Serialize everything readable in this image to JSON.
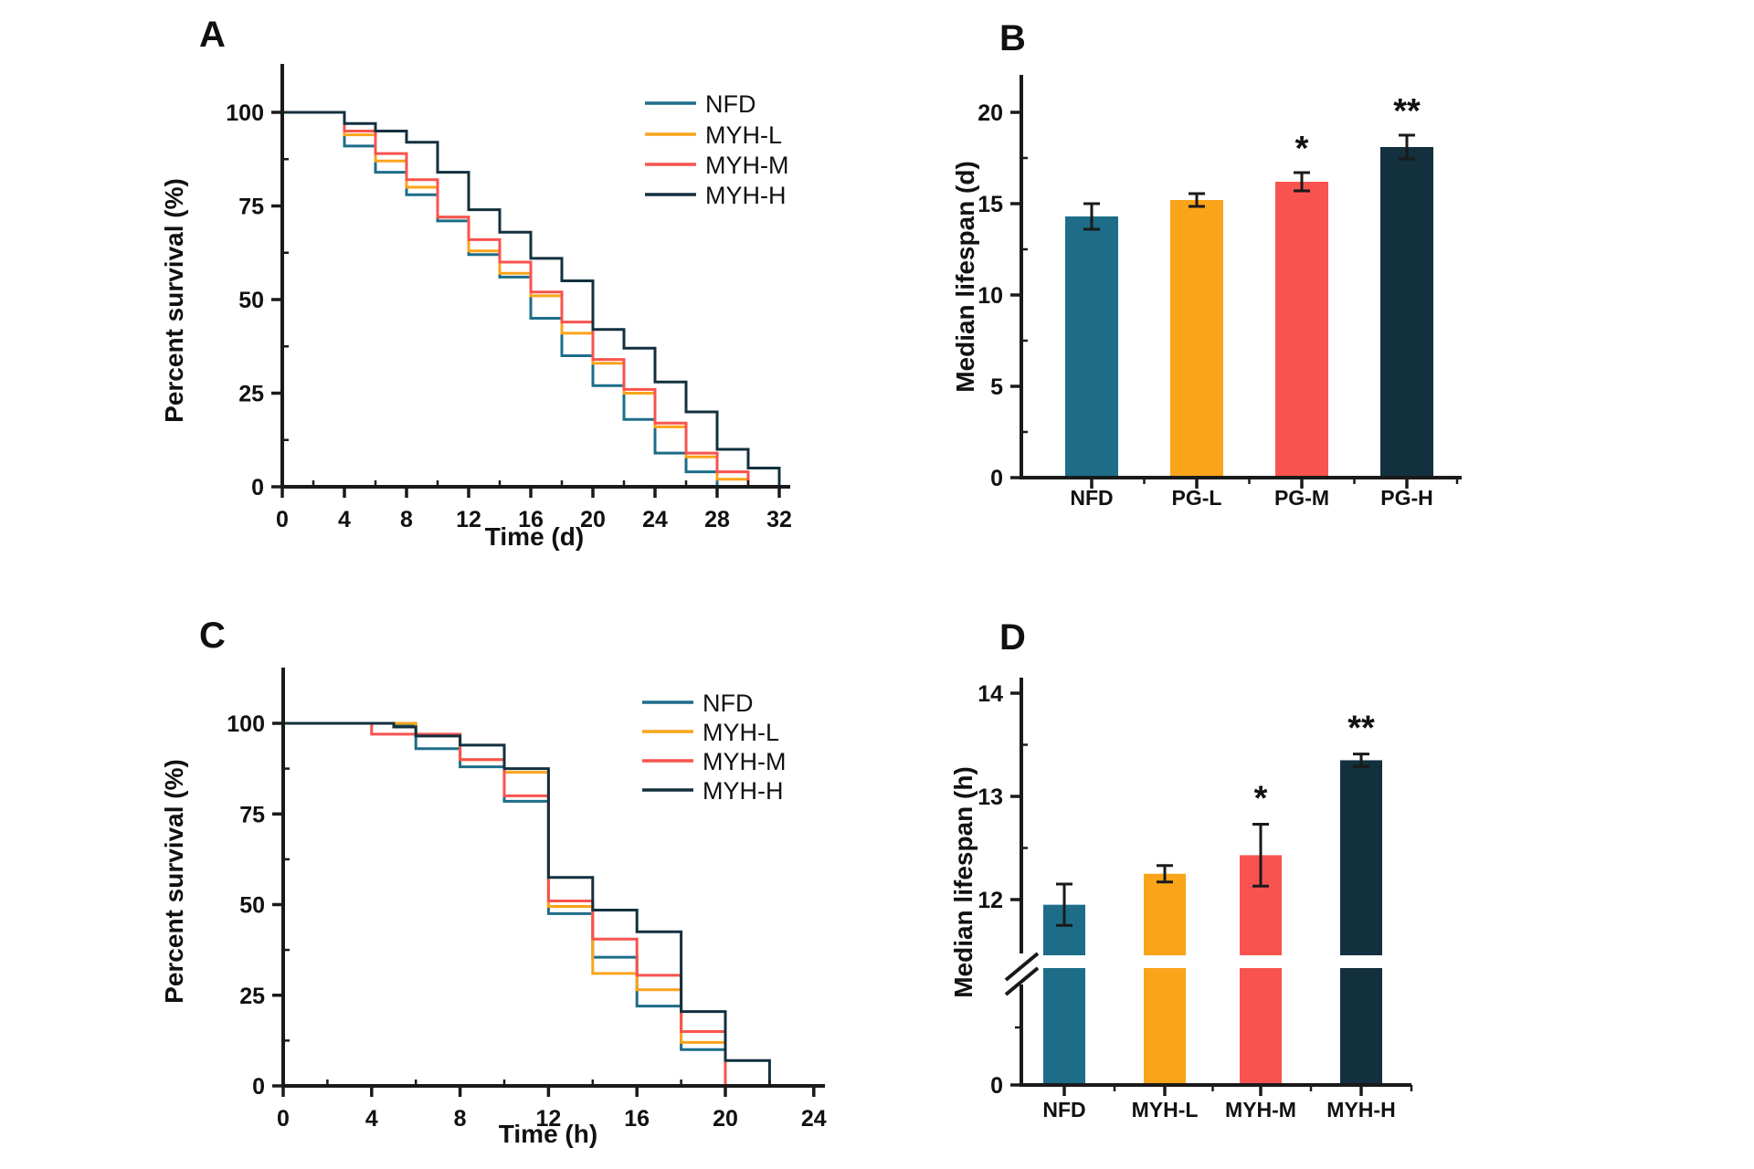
{
  "colors": {
    "teal": "#1D6D89",
    "orange": "#FAA41A",
    "red": "#F8534E",
    "navy": "#13303F",
    "axis": "#1A1A1A",
    "background": "#FFFFFF"
  },
  "chart_data": [
    {
      "id": "A",
      "panel_label": "A",
      "type": "line",
      "subtype": "step-survival",
      "xlabel": "Time (d)",
      "ylabel": "Percent survival (%)",
      "xlim": [
        0,
        32
      ],
      "ylim": [
        0,
        100
      ],
      "x_major_tick": 4,
      "x_minor_tick": 2,
      "x_tick_labels": [
        0,
        4,
        8,
        12,
        16,
        20,
        24,
        28,
        32
      ],
      "y_ticks": [
        0,
        25,
        50,
        75,
        100
      ],
      "y_minor_step": 12.5,
      "grid": false,
      "legend_position": "upper-right",
      "legend": [
        "NFD",
        "MYH-L",
        "MYH-M",
        "MYH-H"
      ],
      "series": [
        {
          "name": "NFD",
          "color": "#1D6D89",
          "points": [
            [
              0,
              100
            ],
            [
              4,
              91
            ],
            [
              6,
              84
            ],
            [
              8,
              78
            ],
            [
              10,
              71
            ],
            [
              12,
              62
            ],
            [
              14,
              56
            ],
            [
              16,
              45
            ],
            [
              18,
              35
            ],
            [
              20,
              27
            ],
            [
              22,
              18
            ],
            [
              24,
              9
            ],
            [
              26,
              4
            ],
            [
              28,
              0
            ]
          ]
        },
        {
          "name": "MYH-L",
          "color": "#FAA41A",
          "points": [
            [
              0,
              100
            ],
            [
              4,
              94
            ],
            [
              6,
              87
            ],
            [
              8,
              80
            ],
            [
              10,
              72
            ],
            [
              12,
              63
            ],
            [
              14,
              57
            ],
            [
              16,
              51
            ],
            [
              18,
              41
            ],
            [
              20,
              33
            ],
            [
              22,
              25
            ],
            [
              24,
              16
            ],
            [
              26,
              8
            ],
            [
              28,
              2
            ],
            [
              30,
              0
            ]
          ]
        },
        {
          "name": "MYH-M",
          "color": "#F8534E",
          "points": [
            [
              0,
              100
            ],
            [
              4,
              95
            ],
            [
              6,
              89
            ],
            [
              8,
              82
            ],
            [
              10,
              72
            ],
            [
              12,
              66
            ],
            [
              14,
              60
            ],
            [
              16,
              52
            ],
            [
              18,
              44
            ],
            [
              20,
              34
            ],
            [
              22,
              26
            ],
            [
              24,
              17
            ],
            [
              26,
              9
            ],
            [
              28,
              4
            ],
            [
              30,
              0
            ]
          ]
        },
        {
          "name": "MYH-H",
          "color": "#13303F",
          "points": [
            [
              0,
              100
            ],
            [
              4,
              97
            ],
            [
              6,
              95
            ],
            [
              8,
              92
            ],
            [
              10,
              84
            ],
            [
              12,
              74
            ],
            [
              14,
              68
            ],
            [
              16,
              61
            ],
            [
              18,
              55
            ],
            [
              20,
              42
            ],
            [
              22,
              37
            ],
            [
              24,
              28
            ],
            [
              26,
              20
            ],
            [
              28,
              10
            ],
            [
              30,
              5
            ],
            [
              32,
              0
            ]
          ]
        }
      ]
    },
    {
      "id": "B",
      "panel_label": "B",
      "type": "bar",
      "ylabel": "Median lifespan (d)",
      "ylim": [
        0,
        22
      ],
      "y_ticks": [
        0,
        5,
        10,
        15,
        20
      ],
      "y_minor_ticks": [
        2.5,
        7.5,
        12.5,
        17.5
      ],
      "grid": false,
      "categories": [
        "NFD",
        "PG-L",
        "PG-M",
        "PG-H"
      ],
      "values": [
        14.3,
        15.2,
        16.2,
        18.1
      ],
      "errors": [
        0.7,
        0.35,
        0.5,
        0.65
      ],
      "significance": [
        "",
        "",
        "*",
        "**"
      ],
      "bar_colors": [
        "#1D6D89",
        "#FAA41A",
        "#F8534E",
        "#13303F"
      ]
    },
    {
      "id": "C",
      "panel_label": "C",
      "type": "line",
      "subtype": "step-survival",
      "xlabel": "Time (h)",
      "ylabel": "Percent survival (%)",
      "xlim": [
        0,
        24
      ],
      "ylim": [
        0,
        100
      ],
      "x_major_tick": 4,
      "x_minor_tick": 2,
      "x_tick_labels": [
        0,
        4,
        8,
        12,
        16,
        20,
        24
      ],
      "y_ticks": [
        0,
        25,
        50,
        75,
        100
      ],
      "y_minor_step": 12.5,
      "grid": false,
      "legend_position": "upper-right",
      "legend": [
        "NFD",
        "MYH-L",
        "MYH-M",
        "MYH-H"
      ],
      "series": [
        {
          "name": "NFD",
          "color": "#1D6D89",
          "points": [
            [
              0,
              100
            ],
            [
              5,
              99.5
            ],
            [
              6,
              93
            ],
            [
              8,
              88
            ],
            [
              10,
              78.5
            ],
            [
              12,
              47.5
            ],
            [
              14,
              35.5
            ],
            [
              16,
              22
            ],
            [
              18,
              10
            ],
            [
              20,
              0
            ]
          ]
        },
        {
          "name": "MYH-L",
          "color": "#FAA41A",
          "points": [
            [
              0,
              100
            ],
            [
              6,
              96.5
            ],
            [
              8,
              90
            ],
            [
              10,
              86.5
            ],
            [
              12,
              49.5
            ],
            [
              14,
              31
            ],
            [
              16,
              26.5
            ],
            [
              18,
              12
            ],
            [
              20,
              0
            ]
          ]
        },
        {
          "name": "MYH-M",
          "color": "#F8534E",
          "points": [
            [
              0,
              100
            ],
            [
              4,
              97
            ],
            [
              8,
              90
            ],
            [
              10,
              80
            ],
            [
              12,
              51
            ],
            [
              14,
              40.5
            ],
            [
              16,
              30.5
            ],
            [
              18,
              15
            ],
            [
              20,
              0
            ]
          ]
        },
        {
          "name": "MYH-H",
          "color": "#13303F",
          "points": [
            [
              0,
              100
            ],
            [
              5,
              99
            ],
            [
              6,
              96.5
            ],
            [
              8,
              94
            ],
            [
              10,
              87.5
            ],
            [
              12,
              57.5
            ],
            [
              14,
              48.5
            ],
            [
              16,
              42.5
            ],
            [
              18,
              20.5
            ],
            [
              20,
              7
            ],
            [
              22,
              0
            ]
          ]
        }
      ]
    },
    {
      "id": "D",
      "panel_label": "D",
      "type": "bar",
      "axis_break": true,
      "ylabel": "Median lifespan (h)",
      "y_ticks_top": [
        12,
        13,
        14
      ],
      "y_minor_ticks_top": [
        12.5,
        13.5
      ],
      "y_tick_bottom": 0,
      "grid": false,
      "categories": [
        "NFD",
        "MYH-L",
        "MYH-M",
        "MYH-H"
      ],
      "values": [
        11.95,
        12.25,
        12.43,
        13.35
      ],
      "errors": [
        0.2,
        0.08,
        0.3,
        0.06
      ],
      "significance": [
        "",
        "",
        "*",
        "**"
      ],
      "bar_colors": [
        "#1D6D89",
        "#FAA41A",
        "#F8534E",
        "#13303F"
      ]
    }
  ]
}
